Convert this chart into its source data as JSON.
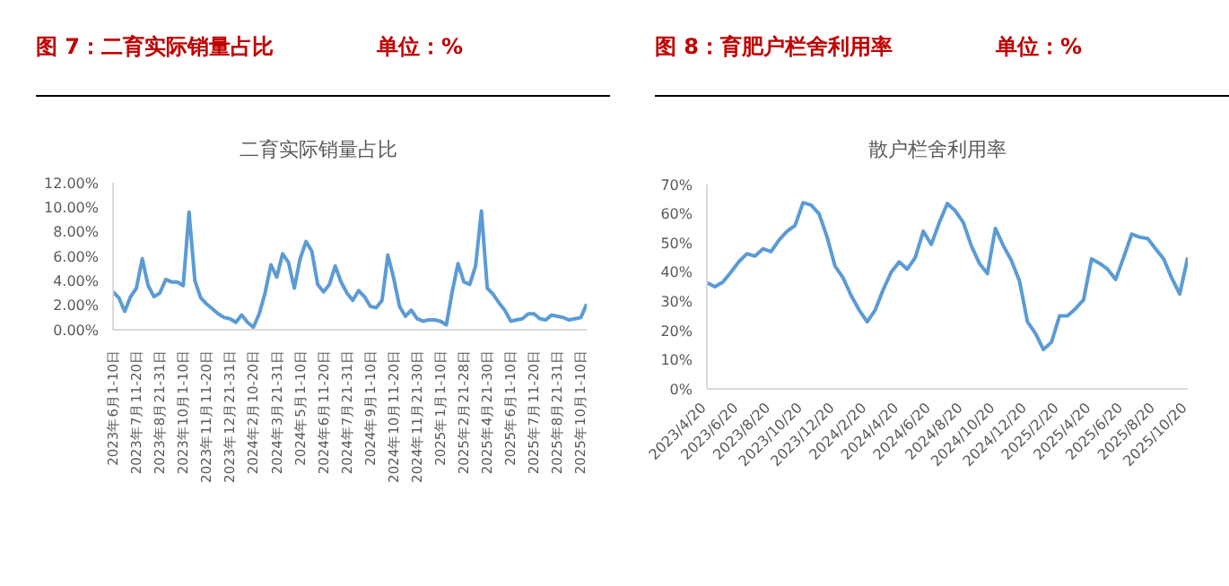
{
  "chart_data": [
    {
      "type": "line",
      "title": "图 7：二育实际销量占比",
      "subtitle": "单位：%",
      "annotations": [
        "二育实际销量占比"
      ],
      "marker": "none",
      "categories": [
        "2023年6月1-10日",
        null,
        null,
        null,
        "2023年7月11-20日",
        null,
        null,
        null,
        "2023年8月21-31日",
        null,
        null,
        null,
        "2023年10月1-10日",
        null,
        null,
        null,
        "2023年11月11-20日",
        null,
        null,
        null,
        "2023年12月21-31日",
        null,
        null,
        null,
        "2024年2月10-20日",
        null,
        null,
        null,
        "2024年3月21-31日",
        null,
        null,
        null,
        "2024年5月1-10日",
        null,
        null,
        null,
        "2024年6月11-20日",
        null,
        null,
        null,
        "2024年7月21-31日",
        null,
        null,
        null,
        "2024年9月1-10日",
        null,
        null,
        null,
        "2024年10月11-20日",
        null,
        null,
        null,
        "2024年11月21-30日",
        null,
        null,
        null,
        "2025年1月1-10日",
        null,
        null,
        null,
        "2025年2月21-28日",
        null,
        null,
        null,
        "2025年4月21-30日",
        null,
        null,
        null,
        "2025年6月1-10日",
        null,
        null,
        null,
        "2025年7月11-20日",
        null,
        null,
        null,
        "2025年8月21-31日",
        null,
        null,
        null,
        "2025年10月1-10日",
        null
      ],
      "series": [
        {
          "color": "#5b9bd5",
          "values": [
            3.1,
            2.6,
            1.5,
            2.7,
            3.4,
            5.8,
            3.6,
            2.7,
            3.0,
            4.1,
            3.9,
            3.9,
            3.6,
            9.6,
            4.0,
            2.6,
            2.1,
            1.7,
            1.3,
            1.0,
            0.9,
            0.6,
            1.2,
            0.6,
            0.2,
            1.3,
            3.0,
            5.3,
            4.3,
            6.2,
            5.5,
            3.4,
            5.8,
            7.2,
            6.4,
            3.7,
            3.1,
            3.7,
            5.2,
            3.9,
            3.0,
            2.4,
            3.2,
            2.7,
            1.9,
            1.8,
            2.4,
            6.1,
            4.2,
            1.9,
            1.1,
            1.6,
            0.9,
            0.7,
            0.8,
            0.8,
            0.7,
            0.4,
            3.1,
            5.4,
            3.9,
            3.7,
            5.2,
            9.7,
            3.4,
            2.9,
            2.2,
            1.6,
            0.7,
            0.8,
            0.9,
            1.3,
            1.3,
            0.9,
            0.8,
            1.2,
            1.1,
            1.0,
            0.8,
            0.9,
            1.0,
            2.1
          ]
        }
      ],
      "ylim": [
        0,
        12
      ],
      "yticks": [
        {
          "value": 0,
          "label": "0.00%"
        },
        {
          "value": 2,
          "label": "2.00%"
        },
        {
          "value": 4,
          "label": "4.00%"
        },
        {
          "value": 6,
          "label": "6.00%"
        },
        {
          "value": 8,
          "label": "8.00%"
        },
        {
          "value": 10,
          "label": "10.00%"
        },
        {
          "value": 12,
          "label": "12.00%"
        }
      ]
    },
    {
      "type": "line",
      "title": "图 8：育肥户栏舍利用率",
      "subtitle": "单位：%",
      "annotations": [
        "散户栏舍利用率"
      ],
      "marker": "none",
      "categories": [
        "2023/4/20",
        null,
        null,
        null,
        "2023/6/20",
        null,
        null,
        null,
        "2023/8/20",
        null,
        null,
        null,
        "2023/10/20",
        null,
        null,
        null,
        "2023/12/20",
        null,
        null,
        null,
        "2024/2/20",
        null,
        null,
        null,
        "2024/4/20",
        null,
        null,
        null,
        "2024/6/20",
        null,
        null,
        null,
        "2024/8/20",
        null,
        null,
        null,
        "2024/10/20",
        null,
        null,
        null,
        "2024/12/20",
        null,
        null,
        null,
        "2025/2/20",
        null,
        null,
        null,
        "2025/4/20",
        null,
        null,
        null,
        "2025/6/20",
        null,
        null,
        null,
        "2025/8/20",
        null,
        null,
        null,
        "2025/10/20"
      ],
      "series": [
        {
          "color": "#5b9bd5",
          "values": [
            36.4,
            35,
            36.6,
            40,
            43.6,
            46.3,
            45.5,
            48,
            47,
            51,
            54,
            56,
            63.8,
            63,
            60,
            52,
            42,
            38,
            32,
            27,
            23,
            27,
            34,
            40,
            43.5,
            41,
            45,
            54,
            49.5,
            57,
            63.5,
            61,
            57,
            49,
            43,
            39.5,
            55,
            49,
            44,
            37,
            23,
            19,
            13.5,
            16,
            25,
            25,
            27.5,
            30.5,
            44.5,
            43,
            41,
            37.5,
            45,
            53,
            52,
            51.5,
            48,
            44.5,
            38,
            32.5,
            45
          ]
        }
      ],
      "ylim": [
        0,
        70
      ],
      "yticks": [
        {
          "value": 0,
          "label": "0%"
        },
        {
          "value": 10,
          "label": "10%"
        },
        {
          "value": 20,
          "label": "20%"
        },
        {
          "value": 30,
          "label": "30%"
        },
        {
          "value": 40,
          "label": "40%"
        },
        {
          "value": 50,
          "label": "50%"
        },
        {
          "value": 60,
          "label": "60%"
        },
        {
          "value": 70,
          "label": "70%"
        }
      ]
    }
  ]
}
